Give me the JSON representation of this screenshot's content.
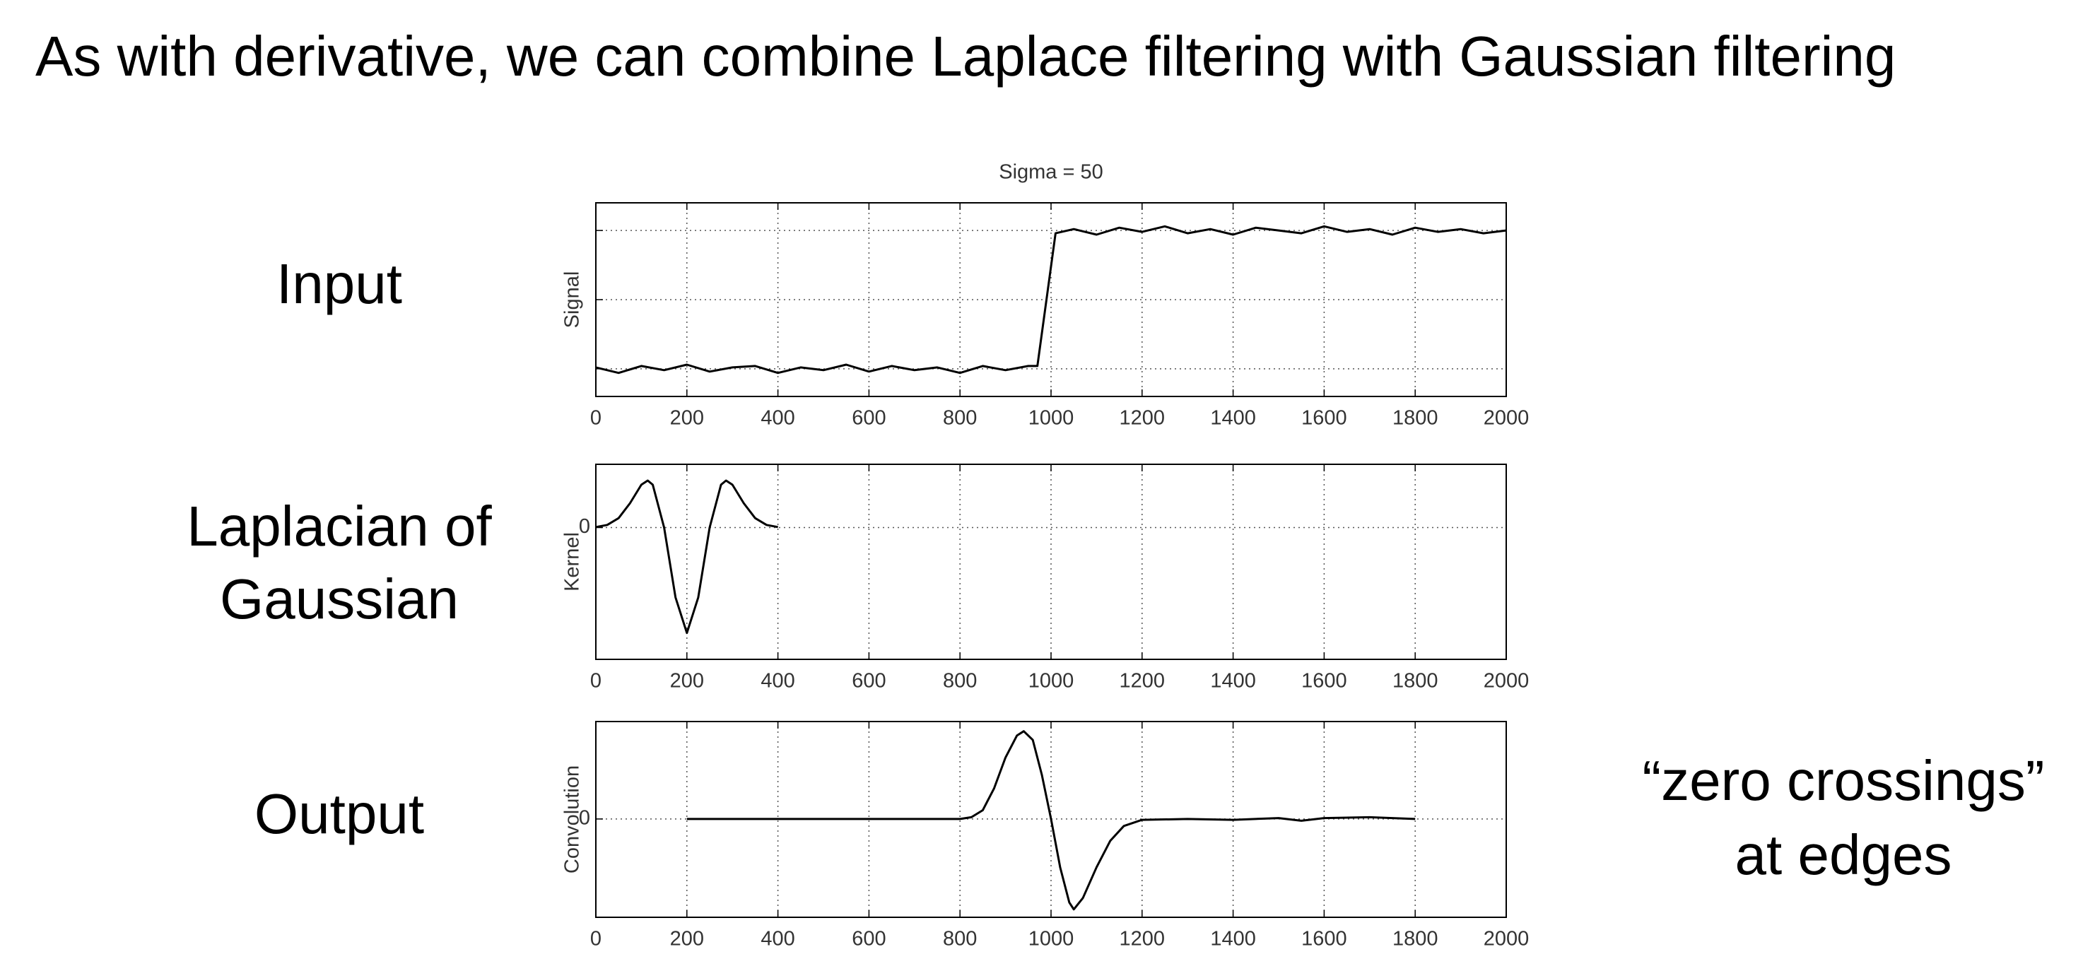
{
  "slide": {
    "title": "As with derivative, we can combine Laplace filtering with Gaussian filtering",
    "row_labels": [
      [
        "Input"
      ],
      [
        "Laplacian of",
        "Gaussian"
      ],
      [
        "Output"
      ]
    ],
    "note": [
      "“zero crossings”",
      "at edges"
    ]
  },
  "chart_data": [
    {
      "type": "line",
      "title": "Sigma = 50",
      "ylabel": "Signal",
      "color": "#000000",
      "grid": true,
      "x": [
        0,
        50,
        100,
        150,
        200,
        250,
        300,
        350,
        400,
        450,
        500,
        550,
        600,
        650,
        700,
        750,
        800,
        850,
        900,
        950,
        970,
        1010,
        1050,
        1100,
        1150,
        1200,
        1250,
        1300,
        1350,
        1400,
        1450,
        1500,
        1550,
        1600,
        1650,
        1700,
        1750,
        1800,
        1850,
        1900,
        1950,
        2000
      ],
      "values": [
        0.01,
        -0.03,
        0.02,
        -0.01,
        0.03,
        -0.02,
        0.01,
        0.02,
        -0.03,
        0.01,
        -0.01,
        0.03,
        -0.02,
        0.02,
        -0.01,
        0.01,
        -0.03,
        0.02,
        -0.01,
        0.02,
        0.02,
        0.98,
        1.01,
        0.97,
        1.02,
        0.99,
        1.03,
        0.98,
        1.01,
        0.97,
        1.02,
        1.0,
        0.98,
        1.03,
        0.99,
        1.01,
        0.97,
        1.02,
        0.99,
        1.01,
        0.98,
        1.0
      ],
      "xlim": [
        0,
        2000
      ],
      "xticks": [
        0,
        200,
        400,
        600,
        800,
        1000,
        1200,
        1400,
        1600,
        1800,
        2000
      ],
      "ylim": [
        -0.2,
        1.2
      ],
      "ygrid": [
        0,
        0.5,
        1
      ]
    },
    {
      "type": "line",
      "ylabel": "Kernel",
      "color": "#000000",
      "grid": true,
      "x": [
        0,
        25,
        50,
        75,
        100,
        114,
        125,
        150,
        175,
        200,
        225,
        250,
        275,
        286,
        300,
        325,
        350,
        375,
        400
      ],
      "values": [
        0.005,
        0.025,
        0.089,
        0.231,
        0.406,
        0.446,
        0.406,
        0,
        -0.662,
        -1,
        -0.662,
        0,
        0.406,
        0.446,
        0.406,
        0.231,
        0.089,
        0.025,
        0.005
      ],
      "xlim": [
        0,
        2000
      ],
      "xticks": [
        0,
        200,
        400,
        600,
        800,
        1000,
        1200,
        1400,
        1600,
        1800,
        2000
      ],
      "ylim": [
        -1.25,
        0.6
      ],
      "yticks": [
        0
      ]
    },
    {
      "type": "line",
      "ylabel": "Convolution",
      "color": "#000000",
      "grid": true,
      "x": [
        200,
        300,
        400,
        500,
        600,
        700,
        800,
        825,
        850,
        875,
        900,
        925,
        940,
        960,
        980,
        1000,
        1020,
        1040,
        1050,
        1070,
        1100,
        1130,
        1160,
        1200,
        1300,
        1400,
        1500,
        1550,
        1600,
        1700,
        1800
      ],
      "values": [
        0,
        0,
        0,
        0,
        0,
        0,
        0,
        0.02,
        0.1,
        0.35,
        0.7,
        0.95,
        1.0,
        0.9,
        0.5,
        0,
        -0.55,
        -0.95,
        -1.03,
        -0.9,
        -0.55,
        -0.25,
        -0.08,
        -0.01,
        0,
        -0.01,
        0.01,
        -0.02,
        0.01,
        0.02,
        0
      ],
      "xlim": [
        0,
        2000
      ],
      "xticks": [
        0,
        200,
        400,
        600,
        800,
        1000,
        1200,
        1400,
        1600,
        1800,
        2000
      ],
      "ylim": [
        -1.12,
        1.11
      ],
      "yticks": [
        0
      ]
    }
  ]
}
